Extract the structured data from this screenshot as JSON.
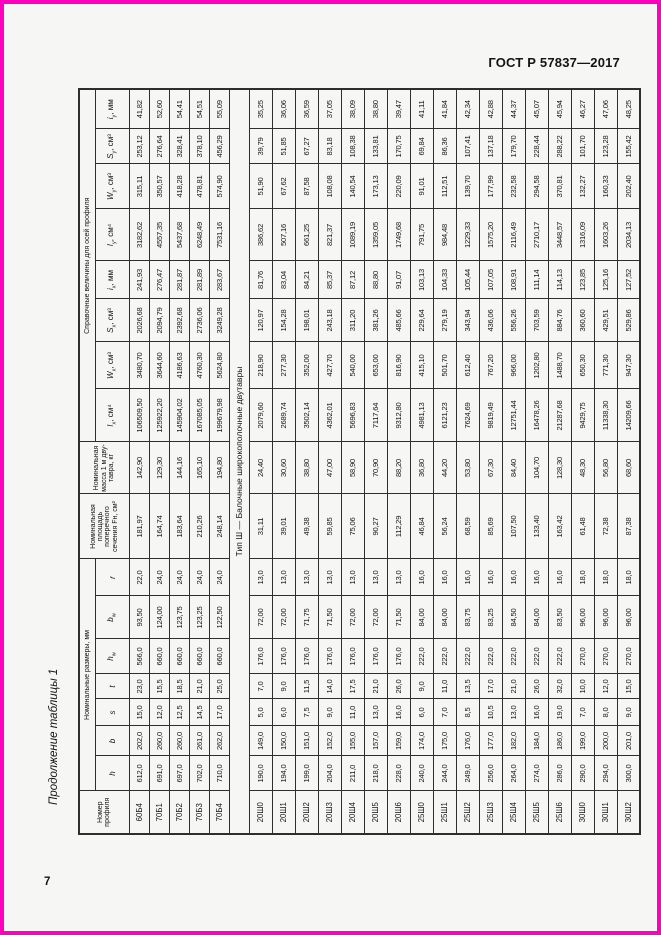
{
  "page": {
    "standard": "ГОСТ Р 57837—2017",
    "side_caption": "Продолжение таблицы 1",
    "page_number": "7"
  },
  "table": {
    "header": {
      "profile_label": "Номер профиля",
      "dims_group_label": "Номинальные размеры, мм",
      "dim_cols": [
        {
          "sym": "h",
          "sub": "",
          "unit": ""
        },
        {
          "sym": "b",
          "sub": "",
          "unit": ""
        },
        {
          "sym": "s",
          "sub": "",
          "unit": ""
        },
        {
          "sym": "t",
          "sub": "",
          "unit": ""
        },
        {
          "sym": "h",
          "sub": "w",
          "unit": ""
        },
        {
          "sym": "b",
          "sub": "w",
          "unit": ""
        },
        {
          "sym": "r",
          "sub": "",
          "unit": ""
        }
      ],
      "area_label": "Номинальная площадь поперечного сечения Fн, см²",
      "mass_label": "Номи­нальная масса 1 м дву­тавра, кг",
      "ref_group_label": "Справочные величины для осей профиля",
      "ref_cols": [
        {
          "sym": "I",
          "sub": "x",
          "unit": "см⁴"
        },
        {
          "sym": "W",
          "sub": "x",
          "unit": "см³"
        },
        {
          "sym": "S",
          "sub": "x",
          "unit": "см³"
        },
        {
          "sym": "i",
          "sub": "x",
          "unit": "мм"
        },
        {
          "sym": "I",
          "sub": "y",
          "unit": "см⁴"
        },
        {
          "sym": "W",
          "sub": "y",
          "unit": "см³"
        },
        {
          "sym": "S",
          "sub": "y",
          "unit": "см³"
        },
        {
          "sym": "i",
          "sub": "y",
          "unit": "мм"
        }
      ]
    },
    "rows": [
      {
        "num": "60Б4",
        "values": [
          "612,0",
          "202,0",
          "15,0",
          "23,0",
          "566,0",
          "93,50",
          "22,0",
          "181,97",
          "142,90",
          "106509,50",
          "3480,70",
          "2026,68",
          "241,93",
          "3182,62",
          "315,11",
          "253,12",
          "41,82"
        ]
      },
      {
        "num": "70Б1",
        "values": [
          "691,0",
          "260,0",
          "12,0",
          "15,5",
          "660,0",
          "124,00",
          "24,0",
          "164,74",
          "129,30",
          "125922,20",
          "3644,60",
          "2094,79",
          "276,47",
          "4557,35",
          "350,57",
          "276,64",
          "52,60"
        ]
      },
      {
        "num": "70Б2",
        "values": [
          "697,0",
          "260,0",
          "12,5",
          "18,5",
          "660,0",
          "123,75",
          "24,0",
          "183,64",
          "144,16",
          "145904,02",
          "4186,63",
          "2392,68",
          "281,87",
          "5437,68",
          "418,28",
          "328,41",
          "54,41"
        ]
      },
      {
        "num": "70Б3",
        "values": [
          "702,0",
          "261,0",
          "14,5",
          "21,0",
          "660,0",
          "123,25",
          "24,0",
          "210,26",
          "165,10",
          "167085,05",
          "4760,30",
          "2736,06",
          "281,89",
          "6248,49",
          "478,81",
          "378,10",
          "54,51"
        ]
      },
      {
        "num": "70Б4",
        "values": [
          "710,0",
          "262,0",
          "17,0",
          "25,0",
          "660,0",
          "122,50",
          "24,0",
          "248,14",
          "194,80",
          "199679,98",
          "5624,80",
          "3249,28",
          "283,67",
          "7531,16",
          "574,90",
          "456,29",
          "55,09"
        ]
      },
      {
        "divider": "Тип Ш — Балочные широкополочные двутавры"
      },
      {
        "num": "20Ш0",
        "values": [
          "190,0",
          "149,0",
          "5,0",
          "7,0",
          "176,0",
          "72,00",
          "13,0",
          "31,11",
          "24,40",
          "2079,60",
          "218,90",
          "120,97",
          "81,76",
          "386,62",
          "51,90",
          "39,79",
          "35,25"
        ]
      },
      {
        "num": "20Ш1",
        "values": [
          "194,0",
          "150,0",
          "6,0",
          "9,0",
          "176,0",
          "72,00",
          "13,0",
          "39,01",
          "30,60",
          "2689,74",
          "277,30",
          "154,28",
          "83,04",
          "507,16",
          "67,62",
          "51,85",
          "36,06"
        ]
      },
      {
        "num": "20Ш2",
        "values": [
          "199,0",
          "151,0",
          "7,5",
          "11,5",
          "176,0",
          "71,75",
          "13,0",
          "49,38",
          "38,80",
          "3502,14",
          "352,00",
          "198,01",
          "84,21",
          "661,25",
          "87,58",
          "67,27",
          "36,59"
        ]
      },
      {
        "num": "20Ш3",
        "values": [
          "204,0",
          "152,0",
          "9,0",
          "14,0",
          "176,0",
          "71,50",
          "13,0",
          "59,85",
          "47,00",
          "4362,01",
          "427,70",
          "243,18",
          "85,37",
          "821,37",
          "108,08",
          "83,18",
          "37,05"
        ]
      },
      {
        "num": "20Ш4",
        "values": [
          "211,0",
          "155,0",
          "11,0",
          "17,5",
          "176,0",
          "72,00",
          "13,0",
          "75,06",
          "58,90",
          "5696,83",
          "540,00",
          "311,20",
          "87,12",
          "1089,19",
          "140,54",
          "108,38",
          "38,09"
        ]
      },
      {
        "num": "20Ш5",
        "values": [
          "218,0",
          "157,0",
          "13,0",
          "21,0",
          "176,0",
          "72,00",
          "13,0",
          "90,27",
          "70,90",
          "7117,64",
          "653,00",
          "381,26",
          "88,80",
          "1359,05",
          "173,13",
          "133,81",
          "38,80"
        ]
      },
      {
        "num": "20Ш6",
        "values": [
          "228,0",
          "159,0",
          "16,0",
          "26,0",
          "176,0",
          "71,50",
          "13,0",
          "112,29",
          "88,20",
          "9312,80",
          "816,90",
          "485,66",
          "91,07",
          "1749,68",
          "220,09",
          "170,75",
          "39,47"
        ]
      },
      {
        "num": "25Ш0",
        "values": [
          "240,0",
          "174,0",
          "6,0",
          "9,0",
          "222,0",
          "84,00",
          "16,0",
          "46,84",
          "36,80",
          "4981,13",
          "415,10",
          "229,64",
          "103,13",
          "791,75",
          "91,01",
          "69,84",
          "41,11"
        ]
      },
      {
        "num": "25Ш1",
        "values": [
          "244,0",
          "175,0",
          "7,0",
          "11,0",
          "222,0",
          "84,00",
          "16,0",
          "56,24",
          "44,20",
          "6121,23",
          "501,70",
          "279,19",
          "104,33",
          "984,48",
          "112,51",
          "86,36",
          "41,84"
        ]
      },
      {
        "num": "25Ш2",
        "values": [
          "249,0",
          "176,0",
          "8,5",
          "13,5",
          "222,0",
          "83,75",
          "16,0",
          "68,59",
          "53,80",
          "7624,69",
          "612,40",
          "343,94",
          "105,44",
          "1229,33",
          "139,70",
          "107,41",
          "42,34"
        ]
      },
      {
        "num": "25Ш3",
        "values": [
          "256,0",
          "177,0",
          "10,5",
          "17,0",
          "222,0",
          "83,25",
          "16,0",
          "85,69",
          "67,30",
          "9819,49",
          "767,20",
          "436,06",
          "107,05",
          "1575,20",
          "177,99",
          "137,18",
          "42,88"
        ]
      },
      {
        "num": "25Ш4",
        "values": [
          "264,0",
          "182,0",
          "13,0",
          "21,0",
          "222,0",
          "84,50",
          "16,0",
          "107,50",
          "84,40",
          "12751,44",
          "966,00",
          "556,26",
          "108,91",
          "2116,49",
          "232,58",
          "179,70",
          "44,37"
        ]
      },
      {
        "num": "25Ш5",
        "values": [
          "274,0",
          "184,0",
          "16,0",
          "26,0",
          "222,0",
          "84,00",
          "16,0",
          "133,40",
          "104,70",
          "16478,26",
          "1202,80",
          "703,59",
          "111,14",
          "2710,17",
          "294,58",
          "228,44",
          "45,07"
        ]
      },
      {
        "num": "25Ш6",
        "values": [
          "286,0",
          "186,0",
          "19,0",
          "32,0",
          "222,0",
          "83,50",
          "16,0",
          "163,42",
          "128,30",
          "21287,68",
          "1488,70",
          "884,76",
          "114,13",
          "3448,57",
          "370,81",
          "288,22",
          "45,94"
        ]
      },
      {
        "num": "30Ш0",
        "values": [
          "290,0",
          "199,0",
          "7,0",
          "10,0",
          "270,0",
          "96,00",
          "18,0",
          "61,48",
          "48,30",
          "9429,75",
          "650,30",
          "360,60",
          "123,85",
          "1316,09",
          "132,27",
          "101,70",
          "46,27"
        ]
      },
      {
        "num": "30Ш1",
        "values": [
          "294,0",
          "200,0",
          "8,0",
          "12,0",
          "270,0",
          "96,00",
          "18,0",
          "72,38",
          "56,80",
          "11338,30",
          "771,30",
          "429,51",
          "125,16",
          "1603,26",
          "160,33",
          "123,28",
          "47,06"
        ]
      },
      {
        "num": "30Ш2",
        "values": [
          "300,0",
          "201,0",
          "9,0",
          "15,0",
          "270,0",
          "96,00",
          "18,0",
          "87,38",
          "68,60",
          "14209,66",
          "947,30",
          "529,86",
          "127,52",
          "2034,13",
          "202,40",
          "155,42",
          "48,25"
        ]
      }
    ]
  }
}
